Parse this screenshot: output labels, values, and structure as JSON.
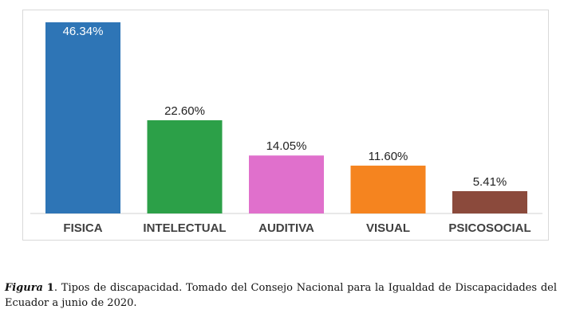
{
  "chart_data": {
    "type": "bar",
    "categories": [
      "FISICA",
      "INTELECTUAL",
      "AUDITIVA",
      "VISUAL",
      "PSICOSOCIAL"
    ],
    "values": [
      46.34,
      22.6,
      14.05,
      11.6,
      5.41
    ],
    "data_labels": [
      "46.34%",
      "22.60%",
      "14.05%",
      "11.60%",
      "5.41%"
    ],
    "colors": [
      "#2e75b6",
      "#2ca048",
      "#e070cc",
      "#f5841f",
      "#8b4a3c"
    ],
    "title": "",
    "xlabel": "",
    "ylabel": "",
    "ylim": [
      0,
      46.34
    ],
    "grid": false,
    "legend": "none"
  },
  "caption": {
    "label": "Figura",
    "number": "1",
    "text": ". Tipos de discapacidad. Tomado del Consejo Nacional para la Igualdad de Discapacidades del Ecuador a junio de 2020."
  }
}
